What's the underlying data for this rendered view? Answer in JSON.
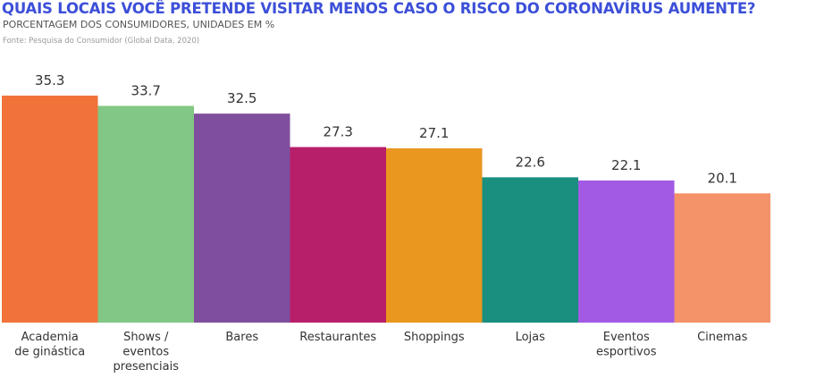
{
  "chart_data": {
    "type": "bar",
    "title": "QUAIS LOCAIS VOCÊ PRETENDE VISITAR MENOS CASO O RISCO DO CORONAVÍRUS AUMENTE?",
    "subtitle": "PORCENTAGEM DOS CONSUMIDORES, UNIDADES EM %",
    "source": "Fonte: Pesquisa do Consumidor (Global Data, 2020)",
    "categories": [
      [
        "Academia",
        "de ginástica"
      ],
      [
        "Shows /",
        "eventos",
        "presenciais"
      ],
      [
        "Bares"
      ],
      [
        "Restaurantes"
      ],
      [
        "Shoppings"
      ],
      [
        "Lojas"
      ],
      [
        "Eventos",
        "esportivos"
      ],
      [
        "Cinemas"
      ]
    ],
    "values": [
      35.3,
      33.7,
      32.5,
      27.3,
      27.1,
      22.6,
      22.1,
      20.1
    ],
    "colors": [
      "#f2733a",
      "#82c785",
      "#7f4f9e",
      "#b81f6b",
      "#e9971f",
      "#1a8f7f",
      "#a25ae4",
      "#f49269"
    ],
    "ylim": [
      0,
      35.3
    ]
  }
}
